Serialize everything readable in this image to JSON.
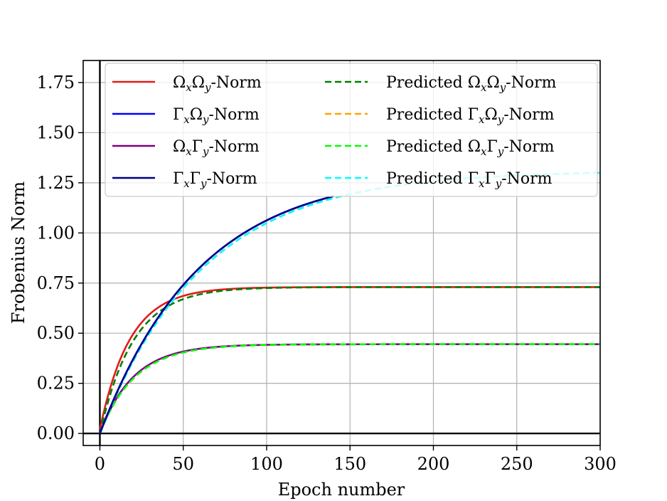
{
  "chart_data": {
    "type": "line",
    "title": "",
    "xlabel": "Epoch number",
    "ylabel": "Frobenius Norm",
    "xlim": [
      -10,
      300
    ],
    "ylim": [
      -0.06,
      1.86
    ],
    "xticks": [
      0,
      50,
      100,
      150,
      200,
      250,
      300
    ],
    "xtick_labels": [
      "0",
      "50",
      "100",
      "150",
      "200",
      "250",
      "300"
    ],
    "yticks": [
      0.0,
      0.25,
      0.5,
      0.75,
      1.0,
      1.25,
      1.5,
      1.75
    ],
    "ytick_labels": [
      "0.00",
      "0.25",
      "0.50",
      "0.75",
      "1.00",
      "1.25",
      "1.50",
      "1.75"
    ],
    "grid": true,
    "legend_position": "top",
    "series": [
      {
        "name": "ΩxΩy-Norm",
        "label": "Ω",
        "sub1": "x",
        "mid": "Ω",
        "sub2": "y",
        "suffix": "-Norm",
        "color": "#e41a1c",
        "style": "solid",
        "a": 0.73,
        "tau": 18,
        "start": 0.02,
        "max_x": 300
      },
      {
        "name": "ΓxΩy-Norm",
        "label": "Γ",
        "sub1": "x",
        "mid": "Ω",
        "sub2": "y",
        "suffix": "-Norm",
        "color": "#0000ff",
        "style": "solid",
        "a": 1.31,
        "tau": 60,
        "start": 0.0,
        "max_x": 140
      },
      {
        "name": "ΩxΓy-Norm",
        "label": "Ω",
        "sub1": "x",
        "mid": "Γ",
        "sub2": "y",
        "suffix": "-Norm",
        "color": "#800080",
        "style": "solid",
        "a": 0.445,
        "tau": 20,
        "start": 0.0,
        "max_x": 300
      },
      {
        "name": "ΓxΓy-Norm",
        "label": "Γ",
        "sub1": "x",
        "mid": "Γ",
        "sub2": "y",
        "suffix": "-Norm",
        "color": "#00008b",
        "style": "solid",
        "a": 1.31,
        "tau": 60,
        "start": 0.0,
        "max_x": 140
      },
      {
        "name": "Predicted ΩxΩy-Norm",
        "label": "Predicted Ω",
        "sub1": "x",
        "mid": "Ω",
        "sub2": "y",
        "suffix": "-Norm",
        "color": "#008000",
        "style": "dashed",
        "a": 0.73,
        "tau": 20,
        "start": 0.0,
        "max_x": 300
      },
      {
        "name": "Predicted ΓxΩy-Norm",
        "label": "Predicted Γ",
        "sub1": "x",
        "mid": "Ω",
        "sub2": "y",
        "suffix": "-Norm",
        "color": "#ffa500",
        "style": "dashed",
        "a": 1.31,
        "tau": 62,
        "start": 0.0,
        "max_x": 300
      },
      {
        "name": "Predicted ΩxΓy-Norm",
        "label": "Predicted Ω",
        "sub1": "x",
        "mid": "Γ",
        "sub2": "y",
        "suffix": "-Norm",
        "color": "#00ff00",
        "style": "dashed",
        "a": 0.445,
        "tau": 21,
        "start": 0.0,
        "max_x": 300
      },
      {
        "name": "Predicted ΓxΓy-Norm",
        "label": "Predicted Γ",
        "sub1": "x",
        "mid": "Γ",
        "sub2": "y",
        "suffix": "-Norm",
        "color": "#00ffff",
        "style": "dashed",
        "a": 1.31,
        "tau": 62,
        "start": 0.0,
        "max_x": 300
      }
    ]
  }
}
